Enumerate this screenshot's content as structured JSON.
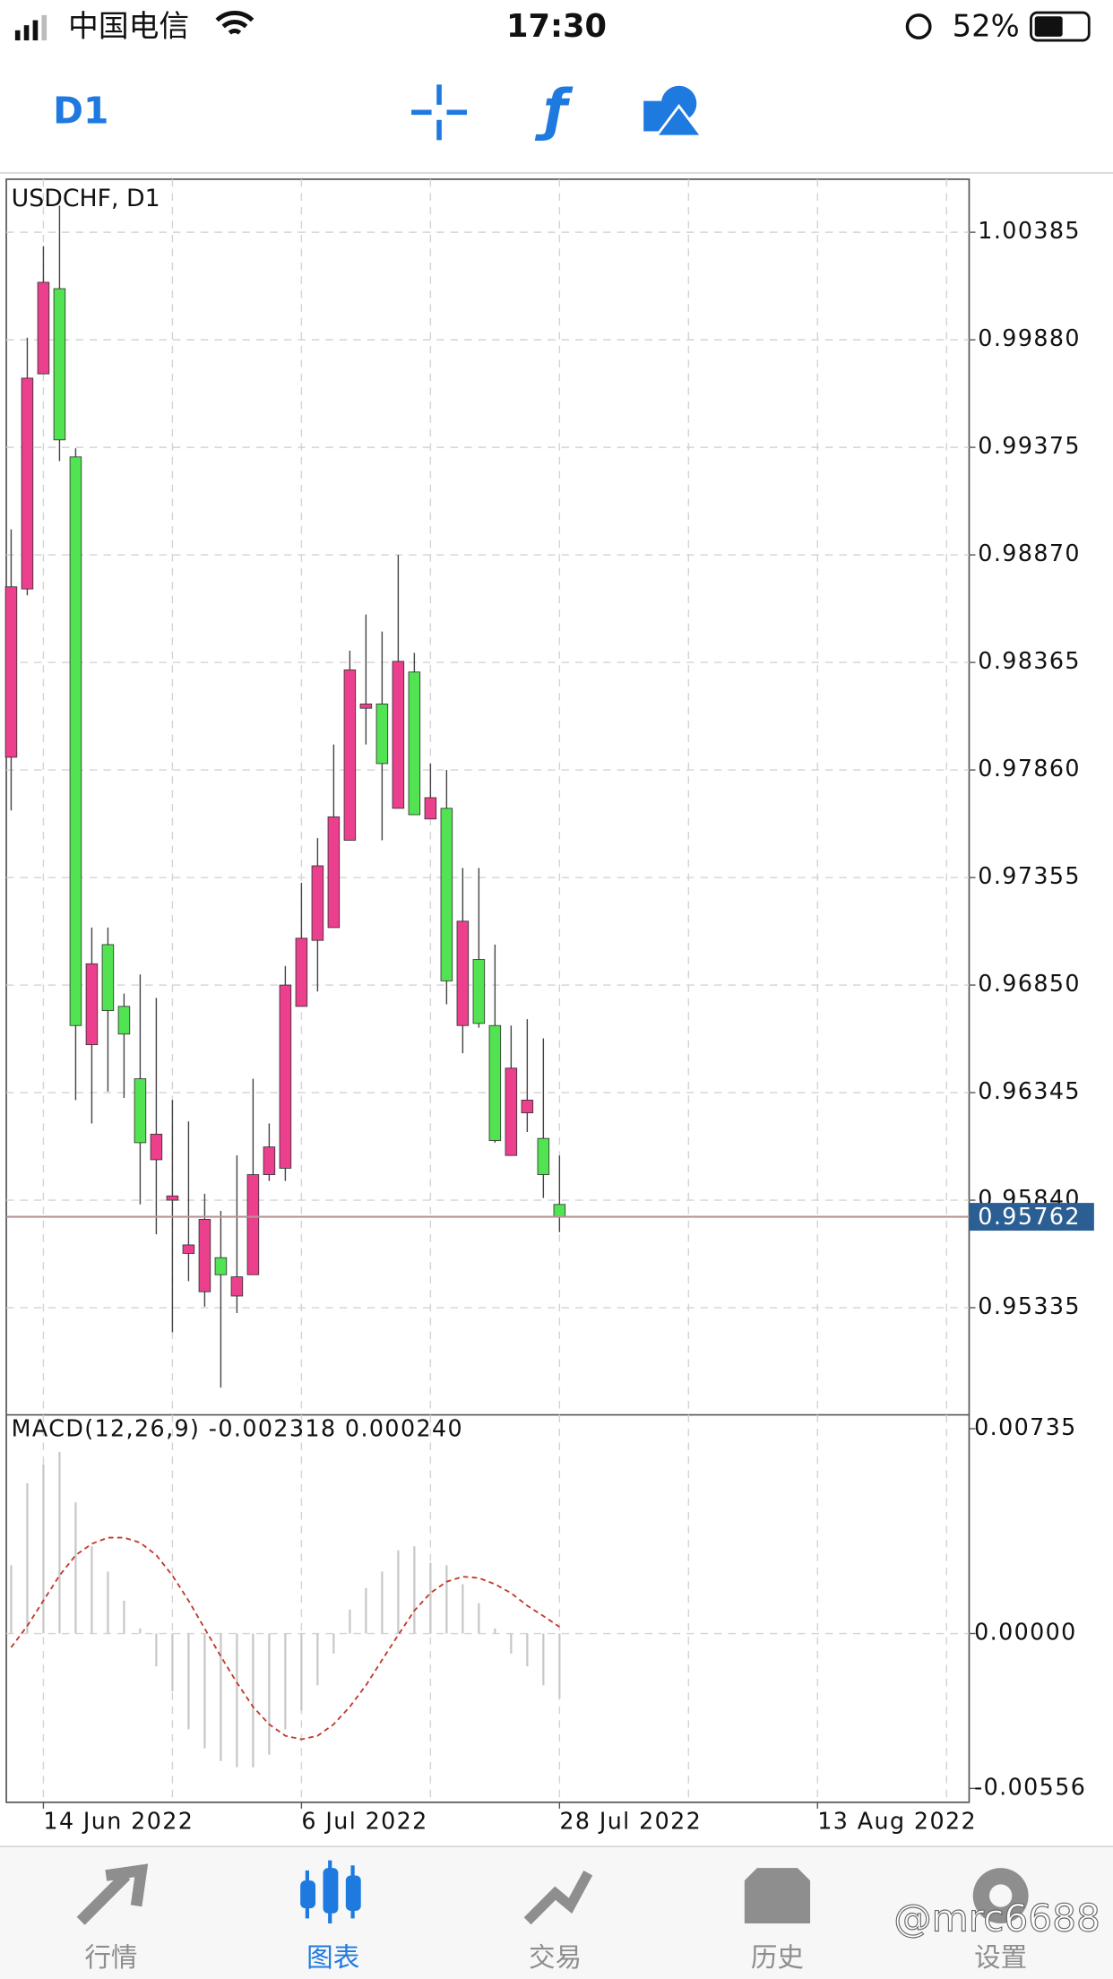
{
  "status_bar": {
    "carrier": "中国电信",
    "time": "17:30",
    "battery": "52%"
  },
  "toolbar": {
    "timeframe": "D1"
  },
  "chart_data": [
    {
      "type": "candlestick",
      "title": "USDCHF, D1",
      "up_color": "#ec3f8e",
      "down_color": "#52e352",
      "open": [
        0.9792,
        0.9871,
        0.9972,
        1.0012,
        0.9933,
        0.9657,
        0.9704,
        0.9675,
        0.9641,
        0.9603,
        0.9584,
        0.9559,
        0.9541,
        0.9557,
        0.9539,
        0.9549,
        0.9596,
        0.9599,
        0.9675,
        0.9706,
        0.9712,
        0.9753,
        0.9815,
        0.9817,
        0.9768,
        0.9832,
        0.9763,
        0.9768,
        0.9666,
        0.9697,
        0.9666,
        0.9605,
        0.9625,
        0.9613,
        0.9582
      ],
      "high": [
        0.9899,
        0.9989,
        1.0032,
        1.0051,
        0.9937,
        0.9712,
        0.9712,
        0.9681,
        0.969,
        0.9679,
        0.9631,
        0.9621,
        0.9587,
        0.9579,
        0.9605,
        0.9641,
        0.962,
        0.9694,
        0.9733,
        0.9754,
        0.9798,
        0.9842,
        0.9859,
        0.9851,
        0.9887,
        0.9841,
        0.9789,
        0.9786,
        0.974,
        0.974,
        0.9704,
        0.9666,
        0.9669,
        0.966,
        0.9605
      ],
      "low": [
        0.9767,
        0.9868,
        0.9972,
        0.9931,
        0.9631,
        0.962,
        0.9635,
        0.9632,
        0.9582,
        0.9568,
        0.9522,
        0.9546,
        0.9534,
        0.9496,
        0.9531,
        0.9549,
        0.9593,
        0.9593,
        0.9675,
        0.9682,
        0.9712,
        0.9753,
        0.9798,
        0.9753,
        0.9768,
        0.9765,
        0.9763,
        0.9676,
        0.9653,
        0.9665,
        0.9611,
        0.9605,
        0.9616,
        0.9585,
        0.9569
      ],
      "close": [
        0.9872,
        0.997,
        1.0015,
        0.9941,
        0.9666,
        0.9695,
        0.9673,
        0.9662,
        0.9611,
        0.9615,
        0.9586,
        0.9563,
        0.9575,
        0.9549,
        0.9548,
        0.9596,
        0.9609,
        0.9685,
        0.9707,
        0.9741,
        0.9764,
        0.9833,
        0.9817,
        0.9789,
        0.9837,
        0.9765,
        0.9773,
        0.9687,
        0.9715,
        0.9667,
        0.9612,
        0.9646,
        0.9631,
        0.9596,
        0.9576
      ],
      "last_price": 0.95762,
      "ylim": [
        0.94838,
        1.00634
      ],
      "yticks": [
        1.00385,
        {
          "value": 0.9988,
          "label": "0.99880"
        },
        0.99375,
        {
          "value": 0.9887,
          "label": "0.98870"
        },
        0.98365,
        {
          "value": 0.9786,
          "label": "0.97860"
        },
        0.97355,
        {
          "value": 0.9685,
          "label": "0.96850"
        },
        0.96345,
        {
          "value": 0.9584,
          "label": "0.95840"
        },
        0.95335
      ],
      "xlim": [
        -0.3,
        59.4
      ],
      "xticks": [
        {
          "value": 2,
          "label": "14 Jun 2022"
        },
        {
          "value": 18,
          "label": "6 Jul 2022"
        },
        {
          "value": 34,
          "label": "28 Jul 2022"
        },
        {
          "value": 50,
          "label": "13 Aug 2022"
        }
      ],
      "xgrid": [
        2,
        10,
        18,
        26,
        34,
        42,
        50,
        58
      ],
      "grid": true
    },
    {
      "type": "macd",
      "title": "MACD(12,26,9) -0.002318 0.000240",
      "histogram": {
        "color": "#c8c8c8",
        "values": [
          0.00245,
          0.00539,
          0.00607,
          0.00652,
          0.00471,
          0.00313,
          0.00222,
          0.00118,
          0.00018,
          -0.00118,
          -0.00208,
          -0.00344,
          -0.00412,
          -0.00458,
          -0.0048,
          -0.0048,
          -0.00435,
          -0.00344,
          -0.00276,
          -0.00186,
          -0.00072,
          0.00086,
          0.00163,
          0.00222,
          0.00299,
          0.00313,
          0.00254,
          0.00245,
          0.00177,
          0.00109,
          0.00018,
          -0.00072,
          -0.00118,
          -0.00186,
          -0.002318
        ]
      },
      "signal": {
        "color": "#c0392b",
        "values": [
          -0.0005,
          0.00027,
          0.00118,
          0.00208,
          0.00281,
          0.00322,
          0.00344,
          0.00344,
          0.00326,
          0.00281,
          0.00208,
          0.00118,
          0.00018,
          -0.00082,
          -0.00177,
          -0.00263,
          -0.00326,
          -0.00367,
          -0.0038,
          -0.00367,
          -0.00326,
          -0.00263,
          -0.00186,
          -0.00095,
          -5e-05,
          0.00082,
          0.00145,
          0.00186,
          0.00204,
          0.00199,
          0.00177,
          0.00145,
          0.001,
          0.00063,
          0.00024
        ]
      },
      "ylim": [
        -0.00556,
        0.00735
      ],
      "yticks": [
        0.00735,
        {
          "value": 0,
          "label": "0.00000"
        },
        -0.00556
      ],
      "xlim": [
        -0.3,
        59.4
      ]
    }
  ],
  "tab_bar": {
    "tabs": [
      "行情",
      "图表",
      "交易",
      "历史",
      "设置"
    ],
    "active": 1
  },
  "watermark": "@mrc6688"
}
